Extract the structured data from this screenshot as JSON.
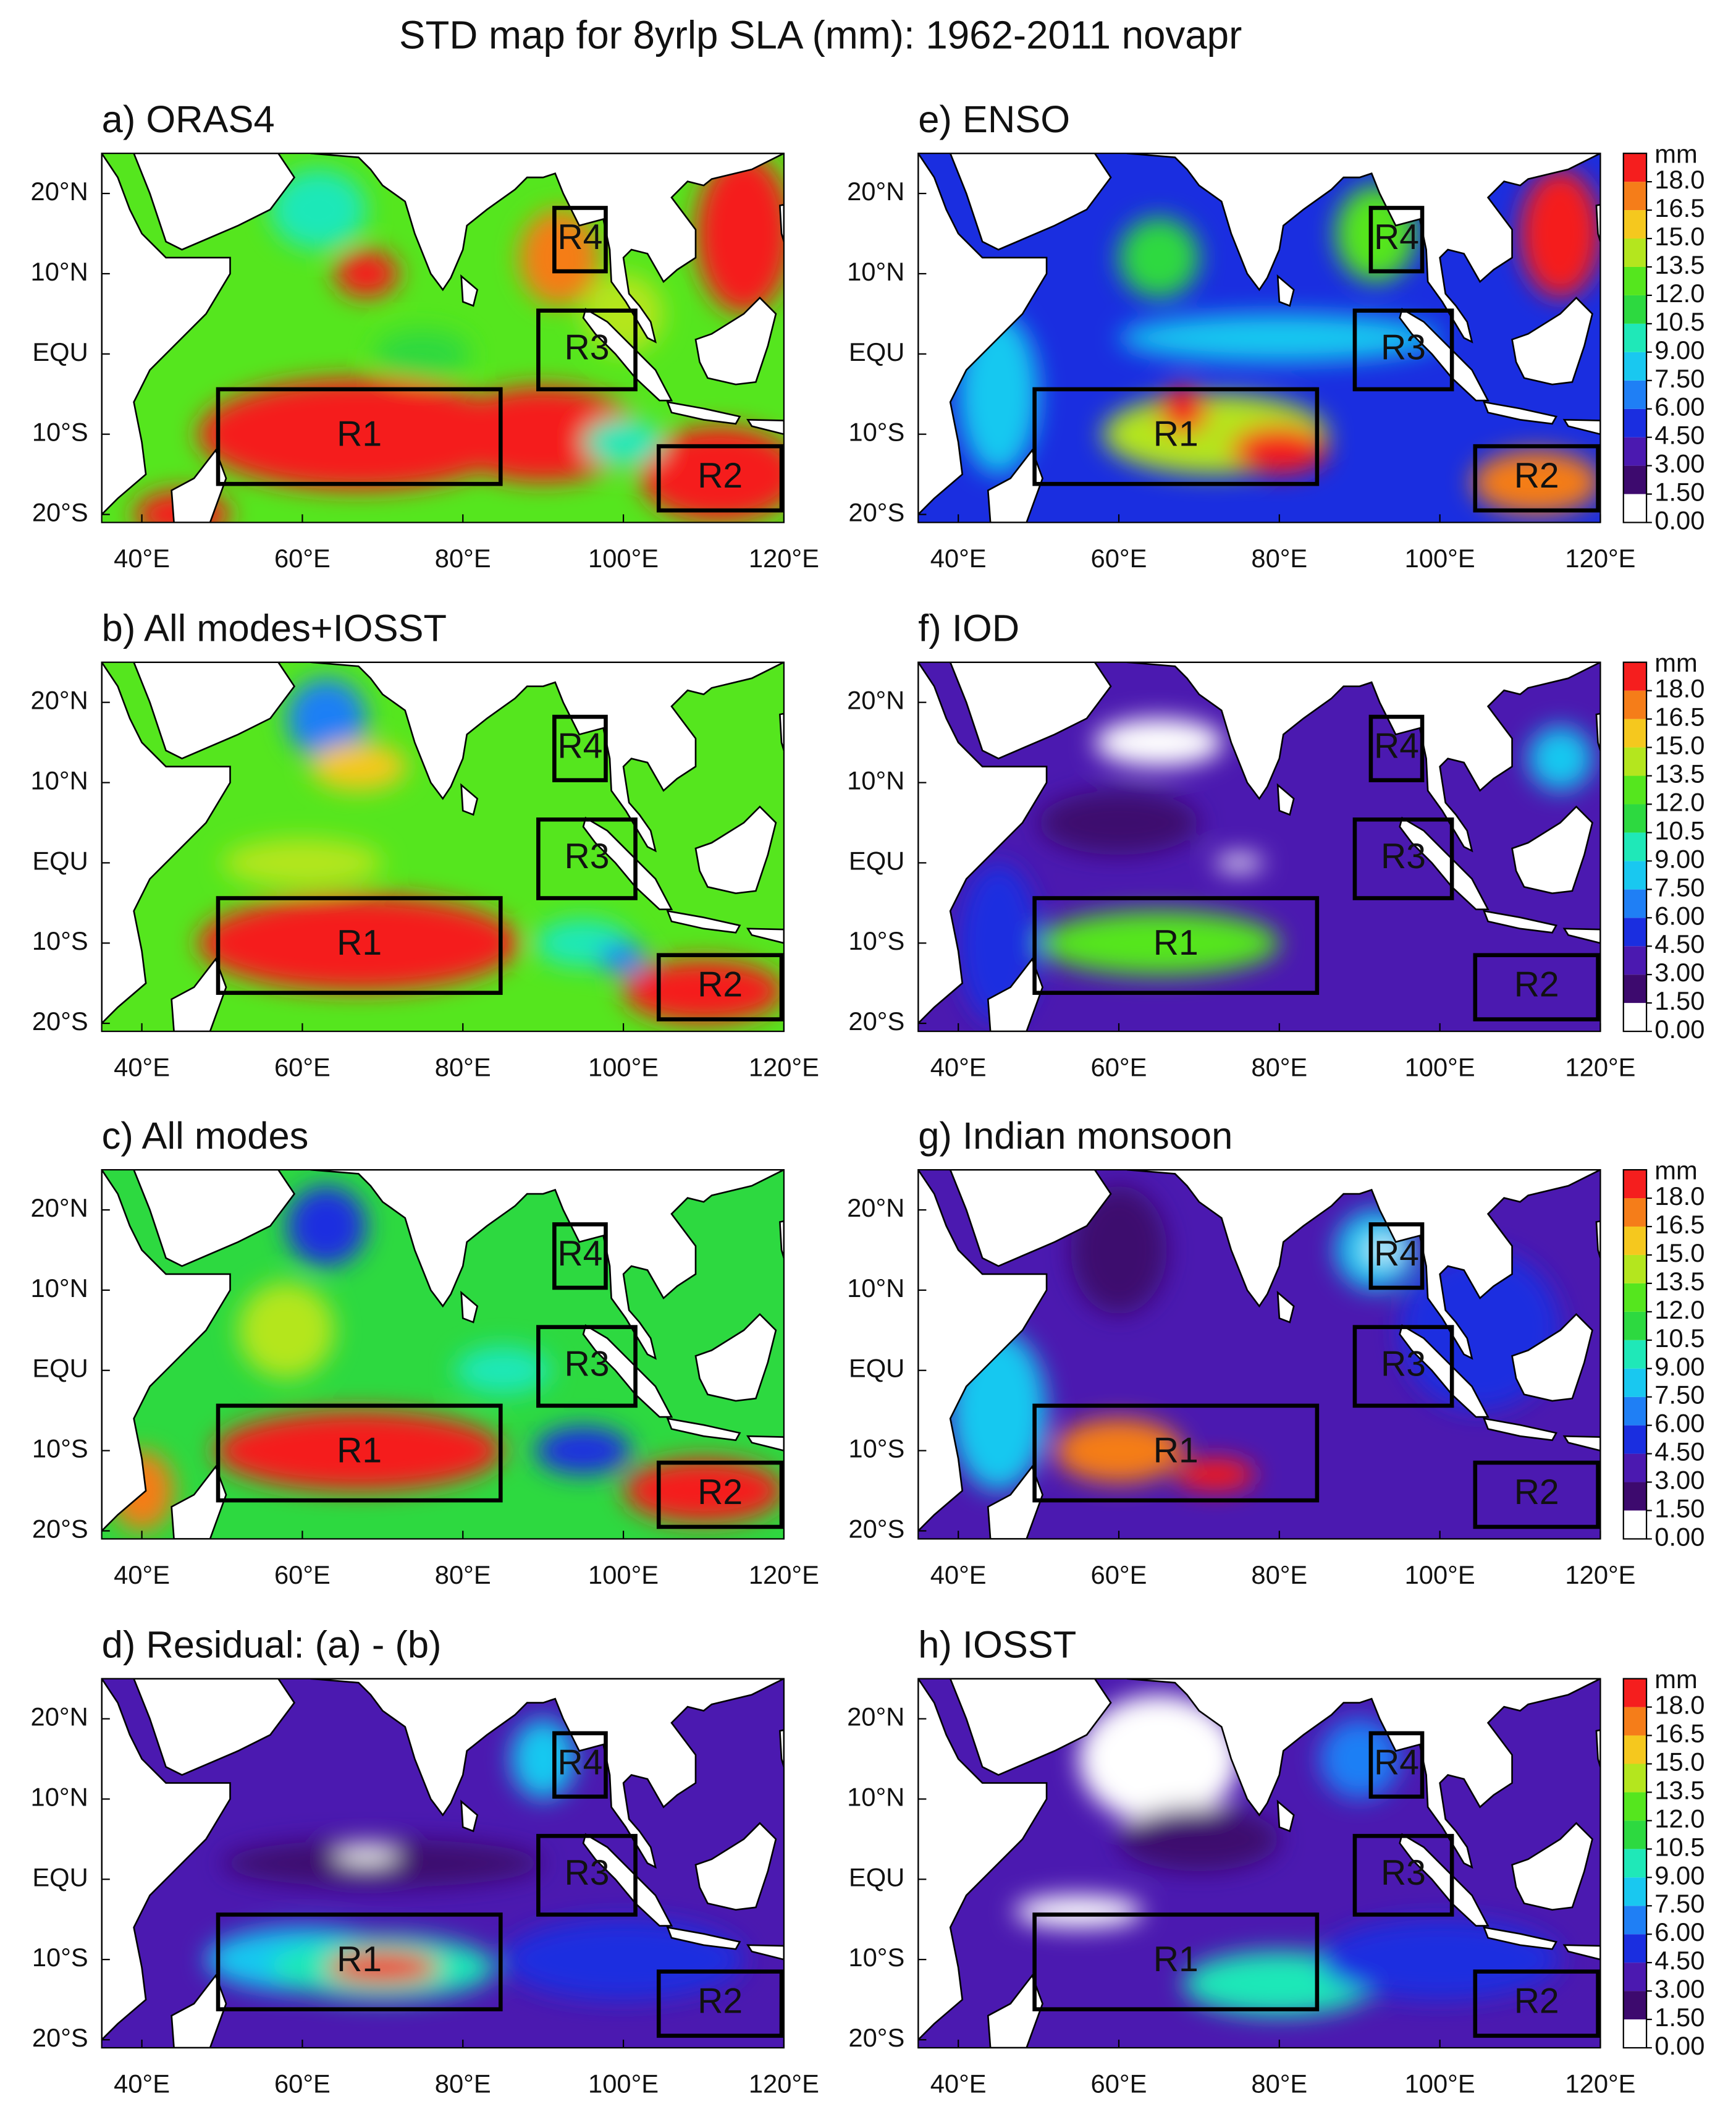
{
  "title": "STD map for 8yrlp SLA (mm): 1962-2011 novapr",
  "maps": {
    "xlim": [
      35,
      120
    ],
    "ylim": [
      -21,
      25
    ],
    "xticks": [
      {
        "value": 40,
        "label": "40°E"
      },
      {
        "value": 60,
        "label": "60°E"
      },
      {
        "value": 80,
        "label": "80°E"
      },
      {
        "value": 100,
        "label": "100°E"
      },
      {
        "value": 120,
        "label": "120°E"
      }
    ],
    "yticks": [
      {
        "value": 20,
        "label": "20°N"
      },
      {
        "value": 10,
        "label": "10°N"
      },
      {
        "value": 0,
        "label": "EQU"
      },
      {
        "value": -10,
        "label": "10°S"
      },
      {
        "value": -20,
        "label": "20°S"
      }
    ],
    "regions": [
      {
        "name": "R1",
        "lon": [
          49.5,
          84.7
        ],
        "lat": [
          -16.2,
          -4.4
        ]
      },
      {
        "name": "R2",
        "lon": [
          104.4,
          119.7
        ],
        "lat": [
          -19.5,
          -11.5
        ]
      },
      {
        "name": "R3",
        "lon": [
          89.4,
          101.5
        ],
        "lat": [
          -4.4,
          5.4
        ]
      },
      {
        "name": "R4",
        "lon": [
          91.4,
          97.8
        ],
        "lat": [
          10.3,
          18.2
        ]
      }
    ]
  },
  "panels": [
    {
      "title": "a) ORAS4"
    },
    {
      "title": "b) All modes+IOSST"
    },
    {
      "title": "c) All modes"
    },
    {
      "title": "d) Residual: (a) - (b)"
    },
    {
      "title": "e) ENSO"
    },
    {
      "title": "f) IOD"
    },
    {
      "title": "g) Indian monsoon"
    },
    {
      "title": "h) IOSST"
    }
  ],
  "colorbar": {
    "unit": "mm",
    "colors": [
      "#ffffff",
      "#3d0a6e",
      "#4b19b0",
      "#1a2ee0",
      "#1f7ff5",
      "#19c8f0",
      "#1fe8b8",
      "#2dd940",
      "#55e61e",
      "#b4e61e",
      "#f5c81e",
      "#f57d19",
      "#f51e1e"
    ],
    "ticks": [
      {
        "value": 0,
        "label": "0.00"
      },
      {
        "value": 1.5,
        "label": "1.50"
      },
      {
        "value": 3,
        "label": "3.00"
      },
      {
        "value": 4.5,
        "label": "4.50"
      },
      {
        "value": 6,
        "label": "6.00"
      },
      {
        "value": 7.5,
        "label": "7.50"
      },
      {
        "value": 9,
        "label": "9.00"
      },
      {
        "value": 10.5,
        "label": "10.5"
      },
      {
        "value": 12,
        "label": "12.0"
      },
      {
        "value": 13.5,
        "label": "13.5"
      },
      {
        "value": 15,
        "label": "15.0"
      },
      {
        "value": 16.5,
        "label": "16.5"
      },
      {
        "value": 18,
        "label": "18.0"
      }
    ]
  }
}
